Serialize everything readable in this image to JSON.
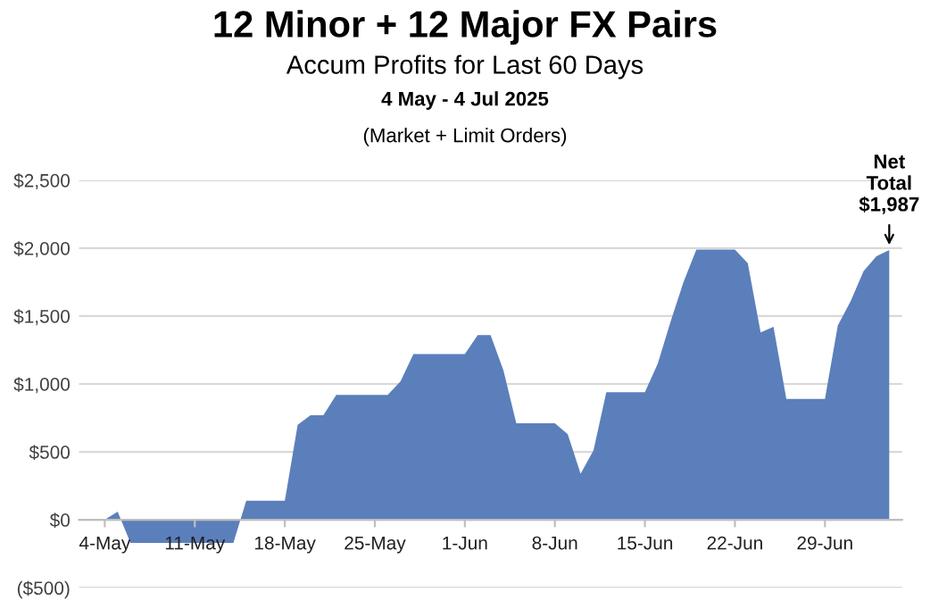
{
  "chart_data": {
    "type": "area",
    "title": "12 Minor + 12 Major FX Pairs",
    "subtitle": "Accum Profits for Last 60 Days",
    "annotations": [
      "4 May - 4 Jul 2025",
      "(Market + Limit Orders)",
      {
        "text": "Net\nTotal\n$1,987",
        "x": "2025-07-04",
        "y": 1987
      }
    ],
    "x": [
      "2025-05-04",
      "2025-05-05",
      "2025-05-06",
      "2025-05-07",
      "2025-05-08",
      "2025-05-09",
      "2025-05-10",
      "2025-05-11",
      "2025-05-12",
      "2025-05-13",
      "2025-05-14",
      "2025-05-15",
      "2025-05-16",
      "2025-05-17",
      "2025-05-18",
      "2025-05-19",
      "2025-05-20",
      "2025-05-21",
      "2025-05-22",
      "2025-05-23",
      "2025-05-24",
      "2025-05-25",
      "2025-05-26",
      "2025-05-27",
      "2025-05-28",
      "2025-05-29",
      "2025-05-30",
      "2025-05-31",
      "2025-06-01",
      "2025-06-02",
      "2025-06-03",
      "2025-06-04",
      "2025-06-05",
      "2025-06-06",
      "2025-06-07",
      "2025-06-08",
      "2025-06-09",
      "2025-06-10",
      "2025-06-11",
      "2025-06-12",
      "2025-06-13",
      "2025-06-14",
      "2025-06-15",
      "2025-06-16",
      "2025-06-17",
      "2025-06-18",
      "2025-06-19",
      "2025-06-20",
      "2025-06-21",
      "2025-06-22",
      "2025-06-23",
      "2025-06-24",
      "2025-06-25",
      "2025-06-26",
      "2025-06-27",
      "2025-06-28",
      "2025-06-29",
      "2025-06-30",
      "2025-07-01",
      "2025-07-02",
      "2025-07-03",
      "2025-07-04"
    ],
    "series": [
      {
        "color": "#5b7fbb",
        "values": [
          0,
          60,
          -170,
          -170,
          -170,
          -170,
          -170,
          -170,
          -170,
          -170,
          -170,
          140,
          140,
          140,
          140,
          700,
          770,
          770,
          920,
          920,
          920,
          920,
          920,
          1020,
          1220,
          1220,
          1220,
          1220,
          1220,
          1360,
          1360,
          1100,
          710,
          710,
          710,
          710,
          630,
          340,
          510,
          940,
          940,
          940,
          940,
          1150,
          1460,
          1750,
          1990,
          1990,
          1990,
          1990,
          1890,
          1380,
          1420,
          890,
          890,
          890,
          890,
          1430,
          1610,
          1830,
          1940,
          1987
        ]
      }
    ],
    "xlim": [
      "2025-05-02",
      "2025-07-05"
    ],
    "xticks": [
      {
        "value": "2025-05-04",
        "label": "4-May"
      },
      {
        "value": "2025-05-11",
        "label": "11-May"
      },
      {
        "value": "2025-05-18",
        "label": "18-May"
      },
      {
        "value": "2025-05-25",
        "label": "25-May"
      },
      {
        "value": "2025-06-01",
        "label": "1-Jun"
      },
      {
        "value": "2025-06-08",
        "label": "8-Jun"
      },
      {
        "value": "2025-06-15",
        "label": "15-Jun"
      },
      {
        "value": "2025-06-22",
        "label": "22-Jun"
      },
      {
        "value": "2025-06-29",
        "label": "29-Jun"
      }
    ],
    "ylim": [
      -500,
      2500
    ],
    "yticks": [
      {
        "value": -500,
        "label": "($500)"
      },
      {
        "value": 0,
        "label": "$0"
      },
      {
        "value": 500,
        "label": "$500"
      },
      {
        "value": 1000,
        "label": "$1,000"
      },
      {
        "value": 1500,
        "label": "$1,500"
      },
      {
        "value": 2000,
        "label": "$2,000"
      },
      {
        "value": 2500,
        "label": "$2,500"
      }
    ],
    "grid": "y"
  }
}
